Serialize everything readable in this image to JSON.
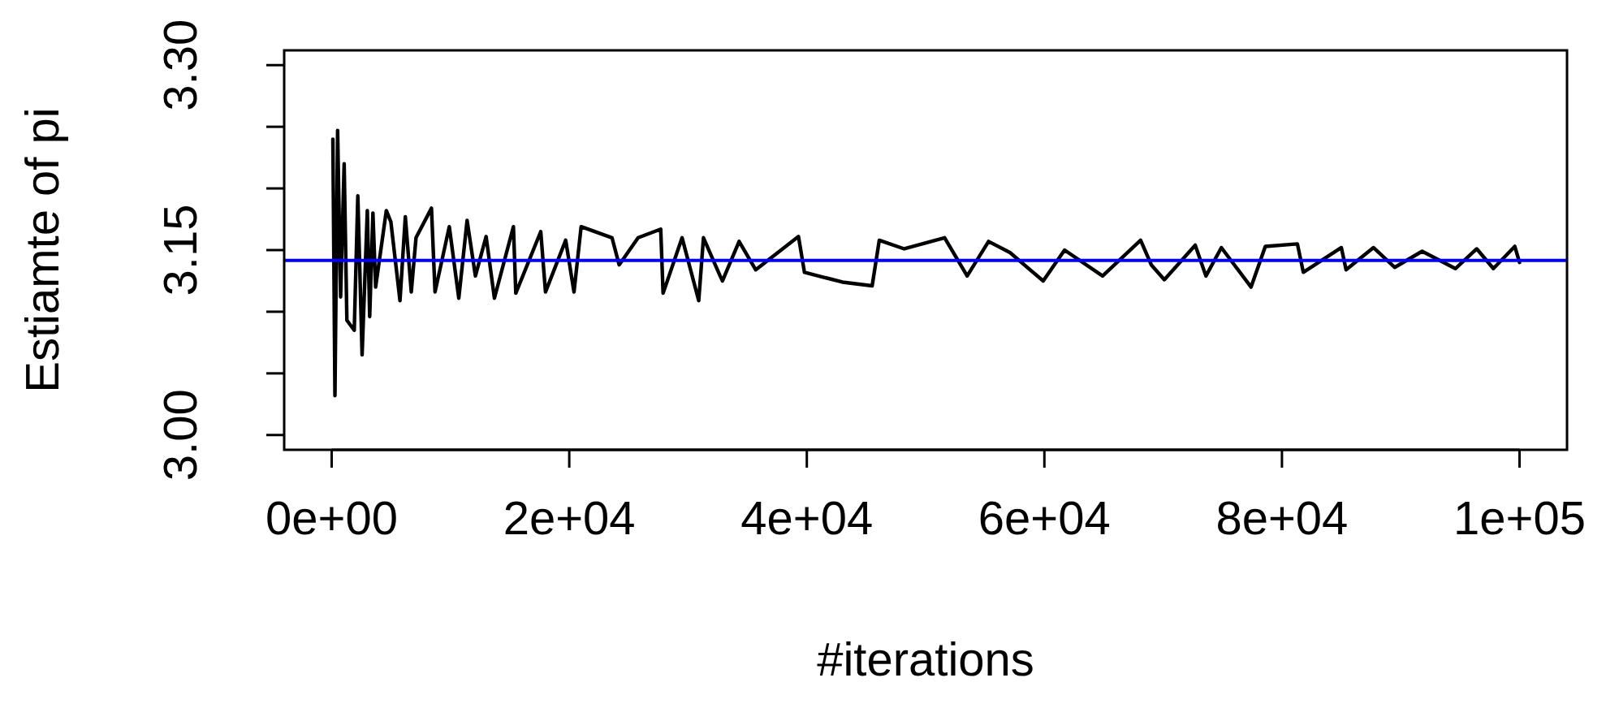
{
  "chart_data": {
    "type": "line",
    "xlabel": "#iterations",
    "ylabel": "Estiamte of pi",
    "xlim": [
      -4000,
      104000
    ],
    "ylim": [
      2.988,
      3.312
    ],
    "xticks": [
      {
        "value": 0,
        "label": "0e+00"
      },
      {
        "value": 20000,
        "label": "2e+04"
      },
      {
        "value": 40000,
        "label": "4e+04"
      },
      {
        "value": 60000,
        "label": "6e+04"
      },
      {
        "value": 80000,
        "label": "8e+04"
      },
      {
        "value": 100000,
        "label": "1e+05"
      }
    ],
    "yticks": [
      {
        "value": 3,
        "label": "3.00"
      },
      {
        "value": 3.05,
        "label": null
      },
      {
        "value": 3.1,
        "label": null
      },
      {
        "value": 3.15,
        "label": "3.15"
      },
      {
        "value": 3.2,
        "label": null
      },
      {
        "value": 3.25,
        "label": null
      },
      {
        "value": 3.3,
        "label": "3.30"
      }
    ],
    "grid": false,
    "marker": "none",
    "line_style": "solid",
    "ref_lines": [
      {
        "axis": "y",
        "value": 3.1416,
        "color": "#0000ff"
      }
    ],
    "series": [
      {
        "color": "#000000",
        "x": [
          100,
          274,
          500,
          750,
          1050,
          1280,
          1900,
          2200,
          2560,
          3000,
          3200,
          3470,
          3700,
          4600,
          4980,
          5750,
          6200,
          6700,
          7100,
          8400,
          8700,
          9900,
          10700,
          11400,
          12100,
          13000,
          13700,
          15300,
          15500,
          17600,
          18000,
          19700,
          20400,
          21000,
          23600,
          24200,
          25800,
          27700,
          27900,
          29500,
          30900,
          31300,
          32700,
          32900,
          34300,
          35700,
          39300,
          39800,
          43000,
          45500,
          46100,
          48200,
          51600,
          53500,
          55300,
          57100,
          59900,
          61700,
          64900,
          68100,
          69000,
          70100,
          72700,
          73600,
          74900,
          77400,
          78600,
          81300,
          81800,
          85000,
          85400,
          87700,
          89500,
          91800,
          94600,
          96400,
          97800,
          99600,
          100000
        ],
        "values": [
          3.24,
          3.032,
          3.247,
          3.112,
          3.22,
          3.093,
          3.085,
          3.194,
          3.065,
          3.182,
          3.096,
          3.18,
          3.12,
          3.182,
          3.173,
          3.109,
          3.177,
          3.116,
          3.16,
          3.184,
          3.116,
          3.169,
          3.111,
          3.174,
          3.129,
          3.161,
          3.111,
          3.169,
          3.115,
          3.165,
          3.116,
          3.158,
          3.116,
          3.169,
          3.16,
          3.138,
          3.16,
          3.167,
          3.115,
          3.16,
          3.109,
          3.16,
          3.129,
          3.125,
          3.157,
          3.134,
          3.161,
          3.132,
          3.124,
          3.121,
          3.158,
          3.151,
          3.16,
          3.129,
          3.157,
          3.148,
          3.125,
          3.15,
          3.129,
          3.158,
          3.138,
          3.126,
          3.154,
          3.129,
          3.152,
          3.12,
          3.153,
          3.155,
          3.132,
          3.152,
          3.134,
          3.152,
          3.136,
          3.149,
          3.135,
          3.151,
          3.135,
          3.153,
          3.14
        ]
      }
    ]
  }
}
